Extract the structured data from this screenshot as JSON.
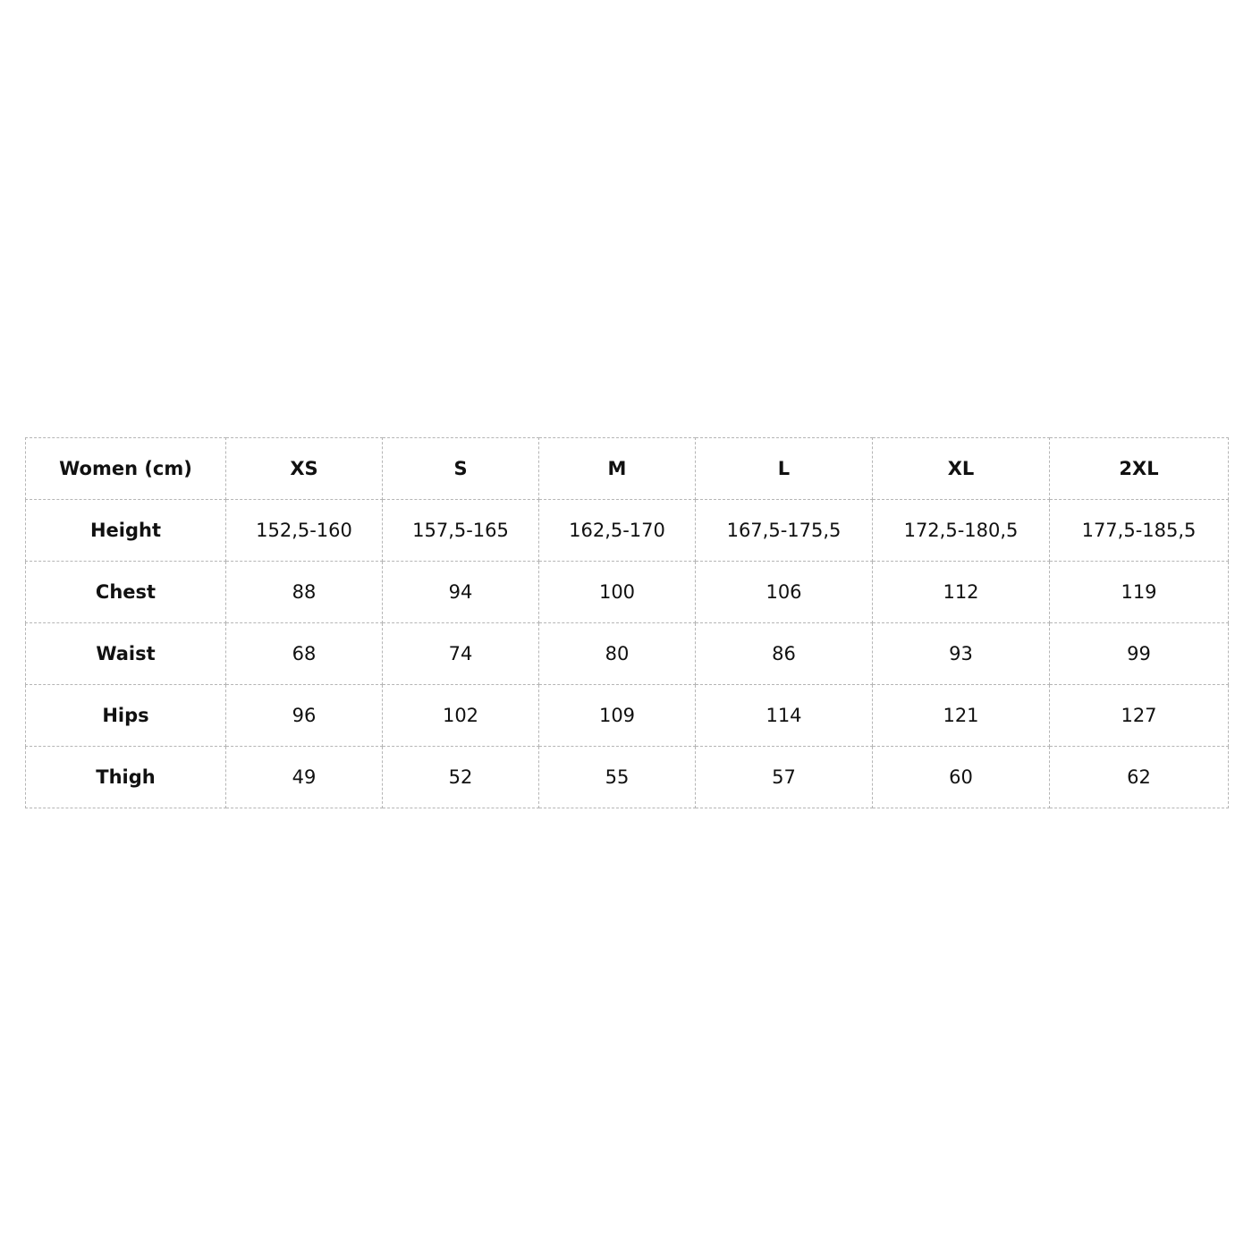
{
  "table": {
    "header": [
      "Women (cm)",
      "XS",
      "S",
      "M",
      "L",
      "XL",
      "2XL"
    ],
    "rows": [
      {
        "label": "Height",
        "values": [
          "152,5-160",
          "157,5-165",
          "162,5-170",
          "167,5-175,5",
          "172,5-180,5",
          "177,5-185,5"
        ]
      },
      {
        "label": "Chest",
        "values": [
          "88",
          "94",
          "100",
          "106",
          "112",
          "119"
        ]
      },
      {
        "label": "Waist",
        "values": [
          "68",
          "74",
          "80",
          "86",
          "93",
          "99"
        ]
      },
      {
        "label": "Hips",
        "values": [
          "96",
          "102",
          "109",
          "114",
          "121",
          "127"
        ]
      },
      {
        "label": "Thigh",
        "values": [
          "49",
          "52",
          "55",
          "57",
          "60",
          "62"
        ]
      }
    ]
  }
}
